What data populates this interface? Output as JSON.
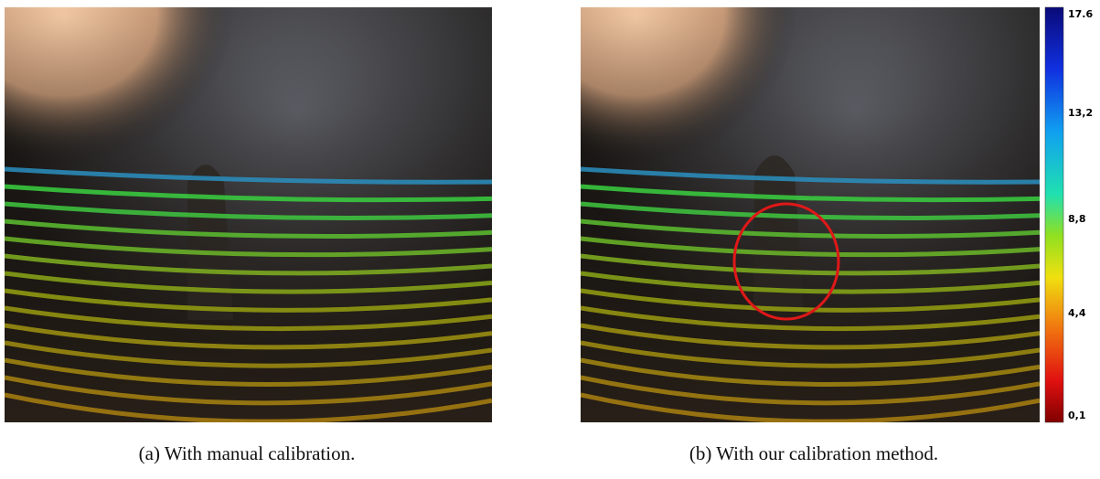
{
  "figure": {
    "panels": [
      {
        "caption": "(a) With manual calibration."
      },
      {
        "caption": "(b) With our calibration method."
      }
    ],
    "colorbar": {
      "labels": [
        "17.6",
        "13,2",
        "8,8",
        "4,4",
        "0,1"
      ]
    }
  }
}
